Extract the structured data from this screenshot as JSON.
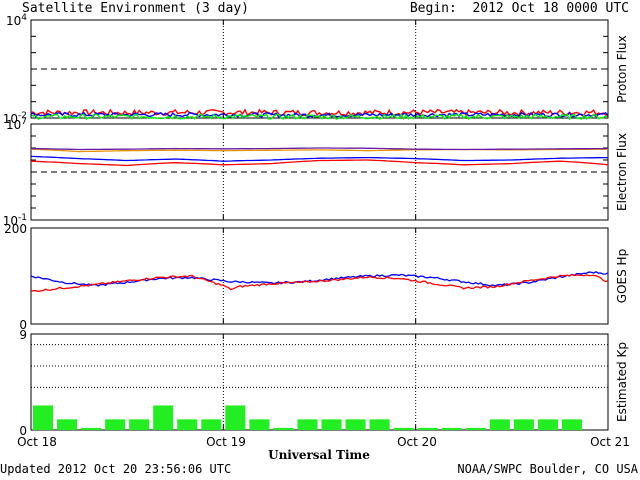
{
  "header": {
    "title": "Satellite Environment (3 day)",
    "begin": "Begin:  2012 Oct 18 0000 UTC"
  },
  "footer": {
    "updated": "Updated 2012 Oct 20 23:56:06 UTC",
    "credit": "NOAA/SWPC Boulder, CO USA"
  },
  "colors": {
    "red": "#ff0000",
    "blue": "#0000ff",
    "green": "#00ee00",
    "orange": "#e69500",
    "purple": "#6a1aa8"
  },
  "chart_data": [
    {
      "type": "line",
      "ylabel": "Proton Flux",
      "scale": "log",
      "ylim": [
        0.01,
        10000
      ],
      "yticks": [
        {
          "base": "10",
          "exp": "4"
        },
        {
          "base": "10",
          "exp": "-2"
        }
      ],
      "threshold": 10,
      "x": [
        0,
        12,
        24,
        36,
        48,
        60,
        72
      ],
      "series": [
        {
          "color": "red",
          "values": [
            0.022,
            0.021,
            0.022,
            0.021,
            0.022,
            0.021,
            0.022
          ],
          "noise": 0.35
        },
        {
          "color": "blue",
          "values": [
            0.016,
            0.016,
            0.016,
            0.015,
            0.016,
            0.016,
            0.016
          ],
          "noise": 0.25
        },
        {
          "color": "green",
          "values": [
            0.012,
            0.012,
            0.012,
            0.012,
            0.012,
            0.012,
            0.012
          ],
          "noise": 0.3
        }
      ]
    },
    {
      "type": "line",
      "ylabel": "Electron Flux",
      "scale": "log",
      "ylim": [
        0.1,
        10000000
      ],
      "yticks": [
        {
          "base": "10",
          "exp": "7"
        },
        {
          "base": "10",
          "exp": "-1"
        }
      ],
      "threshold": 1000,
      "x": [
        0,
        6,
        12,
        18,
        24,
        30,
        36,
        42,
        48,
        54,
        60,
        66,
        72
      ],
      "series": [
        {
          "color": "orange",
          "values": [
            80000,
            50000,
            60000,
            65000,
            60000,
            65000,
            70000,
            60000,
            70000,
            75000,
            70000,
            75000,
            80000
          ]
        },
        {
          "color": "purple",
          "values": [
            90000,
            75000,
            80000,
            90000,
            85000,
            90000,
            100000,
            95000,
            80000,
            75000,
            80000,
            85000,
            90000
          ]
        },
        {
          "color": "blue",
          "values": [
            20000,
            13000,
            9000,
            12000,
            8000,
            10000,
            14000,
            16000,
            13000,
            9000,
            10000,
            14000,
            16000
          ]
        },
        {
          "color": "red",
          "values": [
            8000,
            5000,
            3500,
            6000,
            4000,
            5000,
            9000,
            10000,
            6000,
            4000,
            5000,
            8000,
            4000
          ]
        }
      ]
    },
    {
      "type": "line",
      "ylabel": "GOES Hp",
      "scale": "linear",
      "ylim": [
        0,
        200
      ],
      "yticks": [
        {
          "label": "200",
          "value": 200
        },
        {
          "label": "0",
          "value": 0
        }
      ],
      "x": [
        0,
        4,
        8,
        12,
        16,
        20,
        22,
        24,
        25,
        26,
        30,
        34,
        38,
        42,
        46,
        50,
        54,
        58,
        62,
        66,
        70,
        72
      ],
      "series": [
        {
          "color": "blue",
          "values": [
            100,
            87,
            80,
            87,
            95,
            97,
            93,
            90,
            88,
            88,
            85,
            88,
            95,
            100,
            102,
            97,
            88,
            80,
            86,
            98,
            108,
            105
          ],
          "noise": 2
        },
        {
          "color": "red",
          "values": [
            68,
            75,
            82,
            90,
            97,
            100,
            90,
            80,
            72,
            78,
            84,
            87,
            92,
            98,
            95,
            85,
            75,
            78,
            90,
            100,
            103,
            88
          ],
          "noise": 2
        }
      ]
    },
    {
      "type": "bar",
      "ylabel": "Estimated Kp",
      "ylim": [
        0,
        9
      ],
      "yticks": [
        {
          "label": "9",
          "value": 9
        },
        {
          "label": "0",
          "value": 0
        }
      ],
      "gridlines": [
        4,
        6,
        8,
        9
      ],
      "bar_hours": 3,
      "values": [
        2.3,
        1,
        0.2,
        1,
        1,
        2.3,
        1,
        1,
        2.3,
        1,
        0.2,
        1,
        1,
        1,
        1,
        0.2,
        0.2,
        0.2,
        0.2,
        1,
        1,
        1,
        1,
        0
      ],
      "xlabel": "Universal Time",
      "xtick_labels": [
        "Oct 18",
        "Oct 19",
        "Oct 20",
        "Oct 21"
      ]
    }
  ]
}
